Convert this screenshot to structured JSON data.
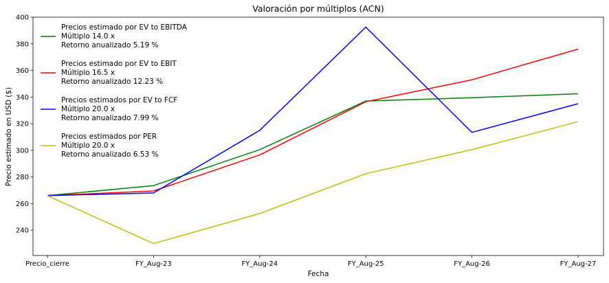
{
  "chart_data": {
    "type": "line",
    "title": "Valoración por múltiplos (ACN)",
    "xlabel": "Fecha",
    "ylabel": "Precio estimado en USD ($)",
    "categories": [
      "Precio_cierre",
      "FY_Aug-23",
      "FY_Aug-24",
      "FY_Aug-25",
      "FY_Aug-26",
      "FY_Aug-27"
    ],
    "ylim": [
      221,
      400
    ],
    "yticks": [
      "240",
      "260",
      "280",
      "300",
      "320",
      "340",
      "360",
      "380",
      "400"
    ],
    "grid": false,
    "legend_position": "upper-left",
    "series": [
      {
        "name": "Precios estimado por EV to EBITDA",
        "name_lines": [
          "Precios estimado por EV to EBITDA",
          "Múltiplo 14.0 x",
          "Retorno anualizado 5.19 %"
        ],
        "color": "#008000",
        "values": [
          266,
          273.5,
          300.5,
          337,
          339.5,
          342.5
        ]
      },
      {
        "name": "Precios estimado por EV to EBIT",
        "name_lines": [
          "Precios estimado por EV to EBIT",
          "Múltiplo 16.5 x",
          "Retorno anualizado 12.23 %"
        ],
        "color": "#ff0000",
        "values": [
          266,
          269.5,
          296.5,
          336.5,
          353,
          376
        ]
      },
      {
        "name": "Precios estimados por EV to FCF",
        "name_lines": [
          "Precios estimados por EV to FCF",
          "Múltiplo 20.0 x",
          "Retorno anualizado 7.99 %"
        ],
        "color": "#0000ff",
        "values": [
          266,
          268,
          315,
          392.5,
          313.5,
          335
        ]
      },
      {
        "name": "Precios estimados por PER",
        "name_lines": [
          "Precios estimados por PER",
          "Múltiplo 20.0 x",
          "Retorno anualizado 6.53 %"
        ],
        "color": "#bfbf00",
        "values": [
          266,
          230,
          252.5,
          282.5,
          300.5,
          321.5
        ]
      }
    ]
  }
}
